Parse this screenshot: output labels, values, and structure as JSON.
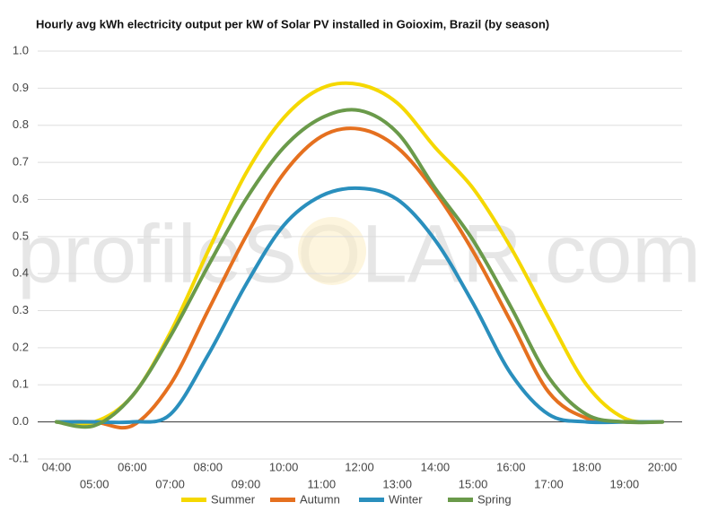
{
  "chart_data": {
    "type": "line",
    "title": "Hourly avg kWh electricity output per kW of Solar PV installed in Goioxim, Brazil (by season)",
    "watermark": "profileSOLAR.com",
    "categories": [
      "04:00",
      "05:00",
      "06:00",
      "07:00",
      "08:00",
      "09:00",
      "10:00",
      "11:00",
      "12:00",
      "13:00",
      "14:00",
      "15:00",
      "16:00",
      "17:00",
      "18:00",
      "19:00",
      "20:00"
    ],
    "series": [
      {
        "name": "Summer",
        "color": "#f5d800",
        "values": [
          0,
          0,
          0.07,
          0.24,
          0.46,
          0.67,
          0.82,
          0.9,
          0.91,
          0.86,
          0.74,
          0.63,
          0.47,
          0.28,
          0.1,
          0.01,
          0
        ]
      },
      {
        "name": "Autumn",
        "color": "#e5701f",
        "values": [
          0,
          0,
          -0.01,
          0.1,
          0.3,
          0.5,
          0.67,
          0.77,
          0.79,
          0.74,
          0.62,
          0.46,
          0.27,
          0.08,
          0.01,
          0,
          0
        ]
      },
      {
        "name": "Winter",
        "color": "#2a8fbd",
        "values": [
          0,
          0,
          0,
          0.02,
          0.18,
          0.37,
          0.53,
          0.61,
          0.63,
          0.6,
          0.49,
          0.32,
          0.13,
          0.02,
          0,
          0,
          0
        ]
      },
      {
        "name": "Spring",
        "color": "#6a9a4a",
        "values": [
          0,
          -0.01,
          0.07,
          0.23,
          0.42,
          0.6,
          0.74,
          0.82,
          0.84,
          0.78,
          0.63,
          0.49,
          0.31,
          0.12,
          0.02,
          0,
          0
        ]
      }
    ],
    "ylim": [
      -0.1,
      1.0
    ],
    "yticks": [
      -0.1,
      {
        "value": 0,
        "label": "0.0"
      },
      0.1,
      0.2,
      0.3,
      0.4,
      0.5,
      0.6,
      0.7,
      0.8,
      0.9,
      {
        "value": 1,
        "label": "1.0"
      }
    ],
    "grid": true,
    "legend": "bottom"
  }
}
